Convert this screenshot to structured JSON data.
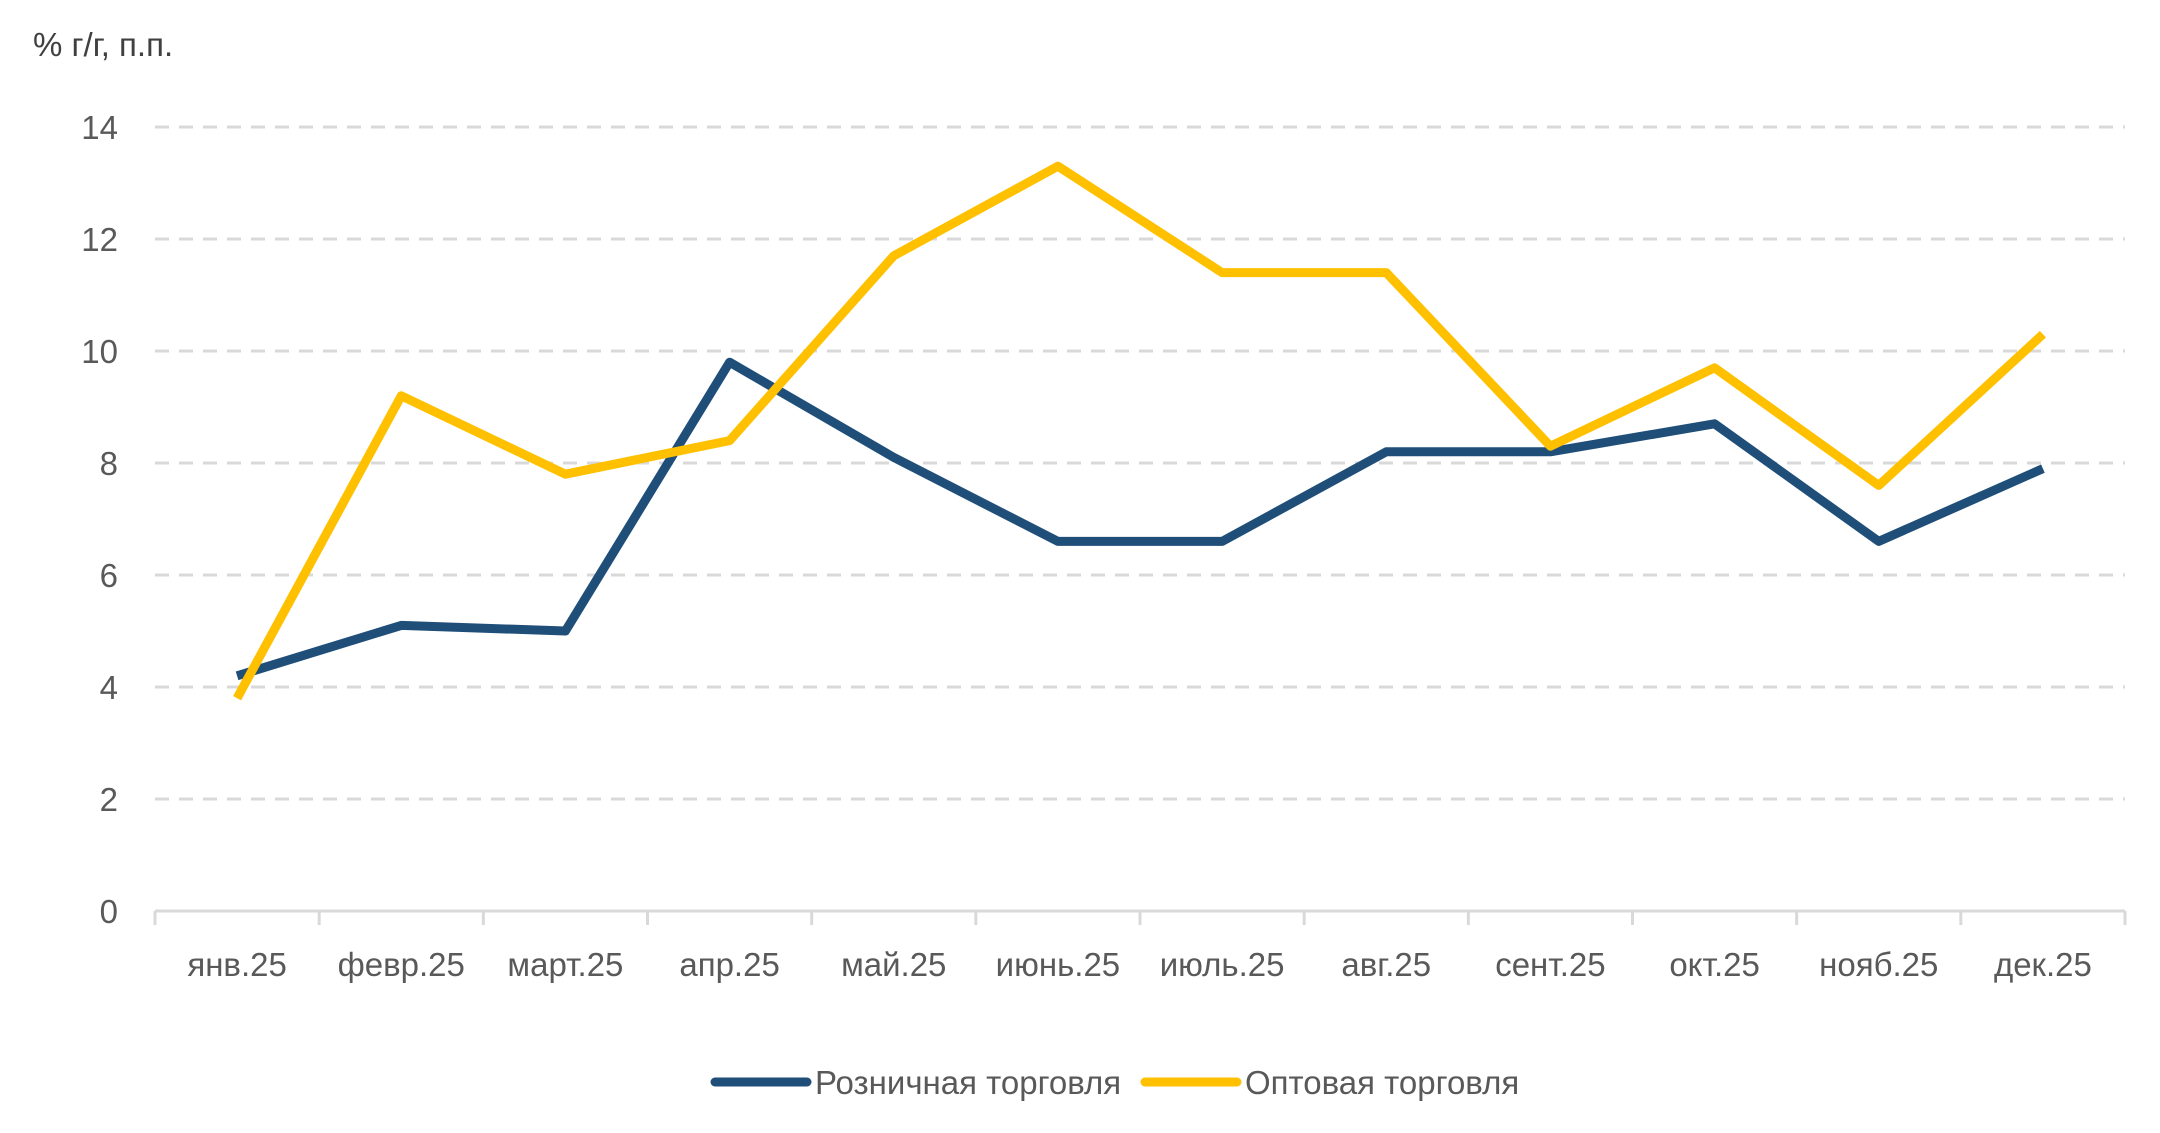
{
  "chart_data": {
    "type": "line",
    "title": "",
    "ylabel": "% г/г, п.п.",
    "xlabel": "",
    "categories": [
      "янв.25",
      "февр.25",
      "март.25",
      "апр.25",
      "май.25",
      "июнь.25",
      "июль.25",
      "авг.25",
      "сент.25",
      "окт.25",
      "нояб.25",
      "дек.25"
    ],
    "ylim": [
      0,
      14
    ],
    "yticks": [
      0,
      2,
      4,
      6,
      8,
      10,
      12,
      14
    ],
    "grid": true,
    "legend_position": "bottom",
    "series": [
      {
        "name": "Розничная торговля",
        "color": "#1F4E79",
        "values": [
          4.2,
          5.1,
          5.0,
          9.8,
          8.1,
          6.6,
          6.6,
          8.2,
          8.2,
          8.7,
          6.6,
          7.9
        ]
      },
      {
        "name": "Оптовая торговля",
        "color": "#FFC000",
        "values": [
          3.8,
          9.2,
          7.8,
          8.4,
          11.7,
          13.3,
          11.4,
          11.4,
          8.3,
          9.7,
          7.6,
          10.3
        ]
      }
    ]
  }
}
